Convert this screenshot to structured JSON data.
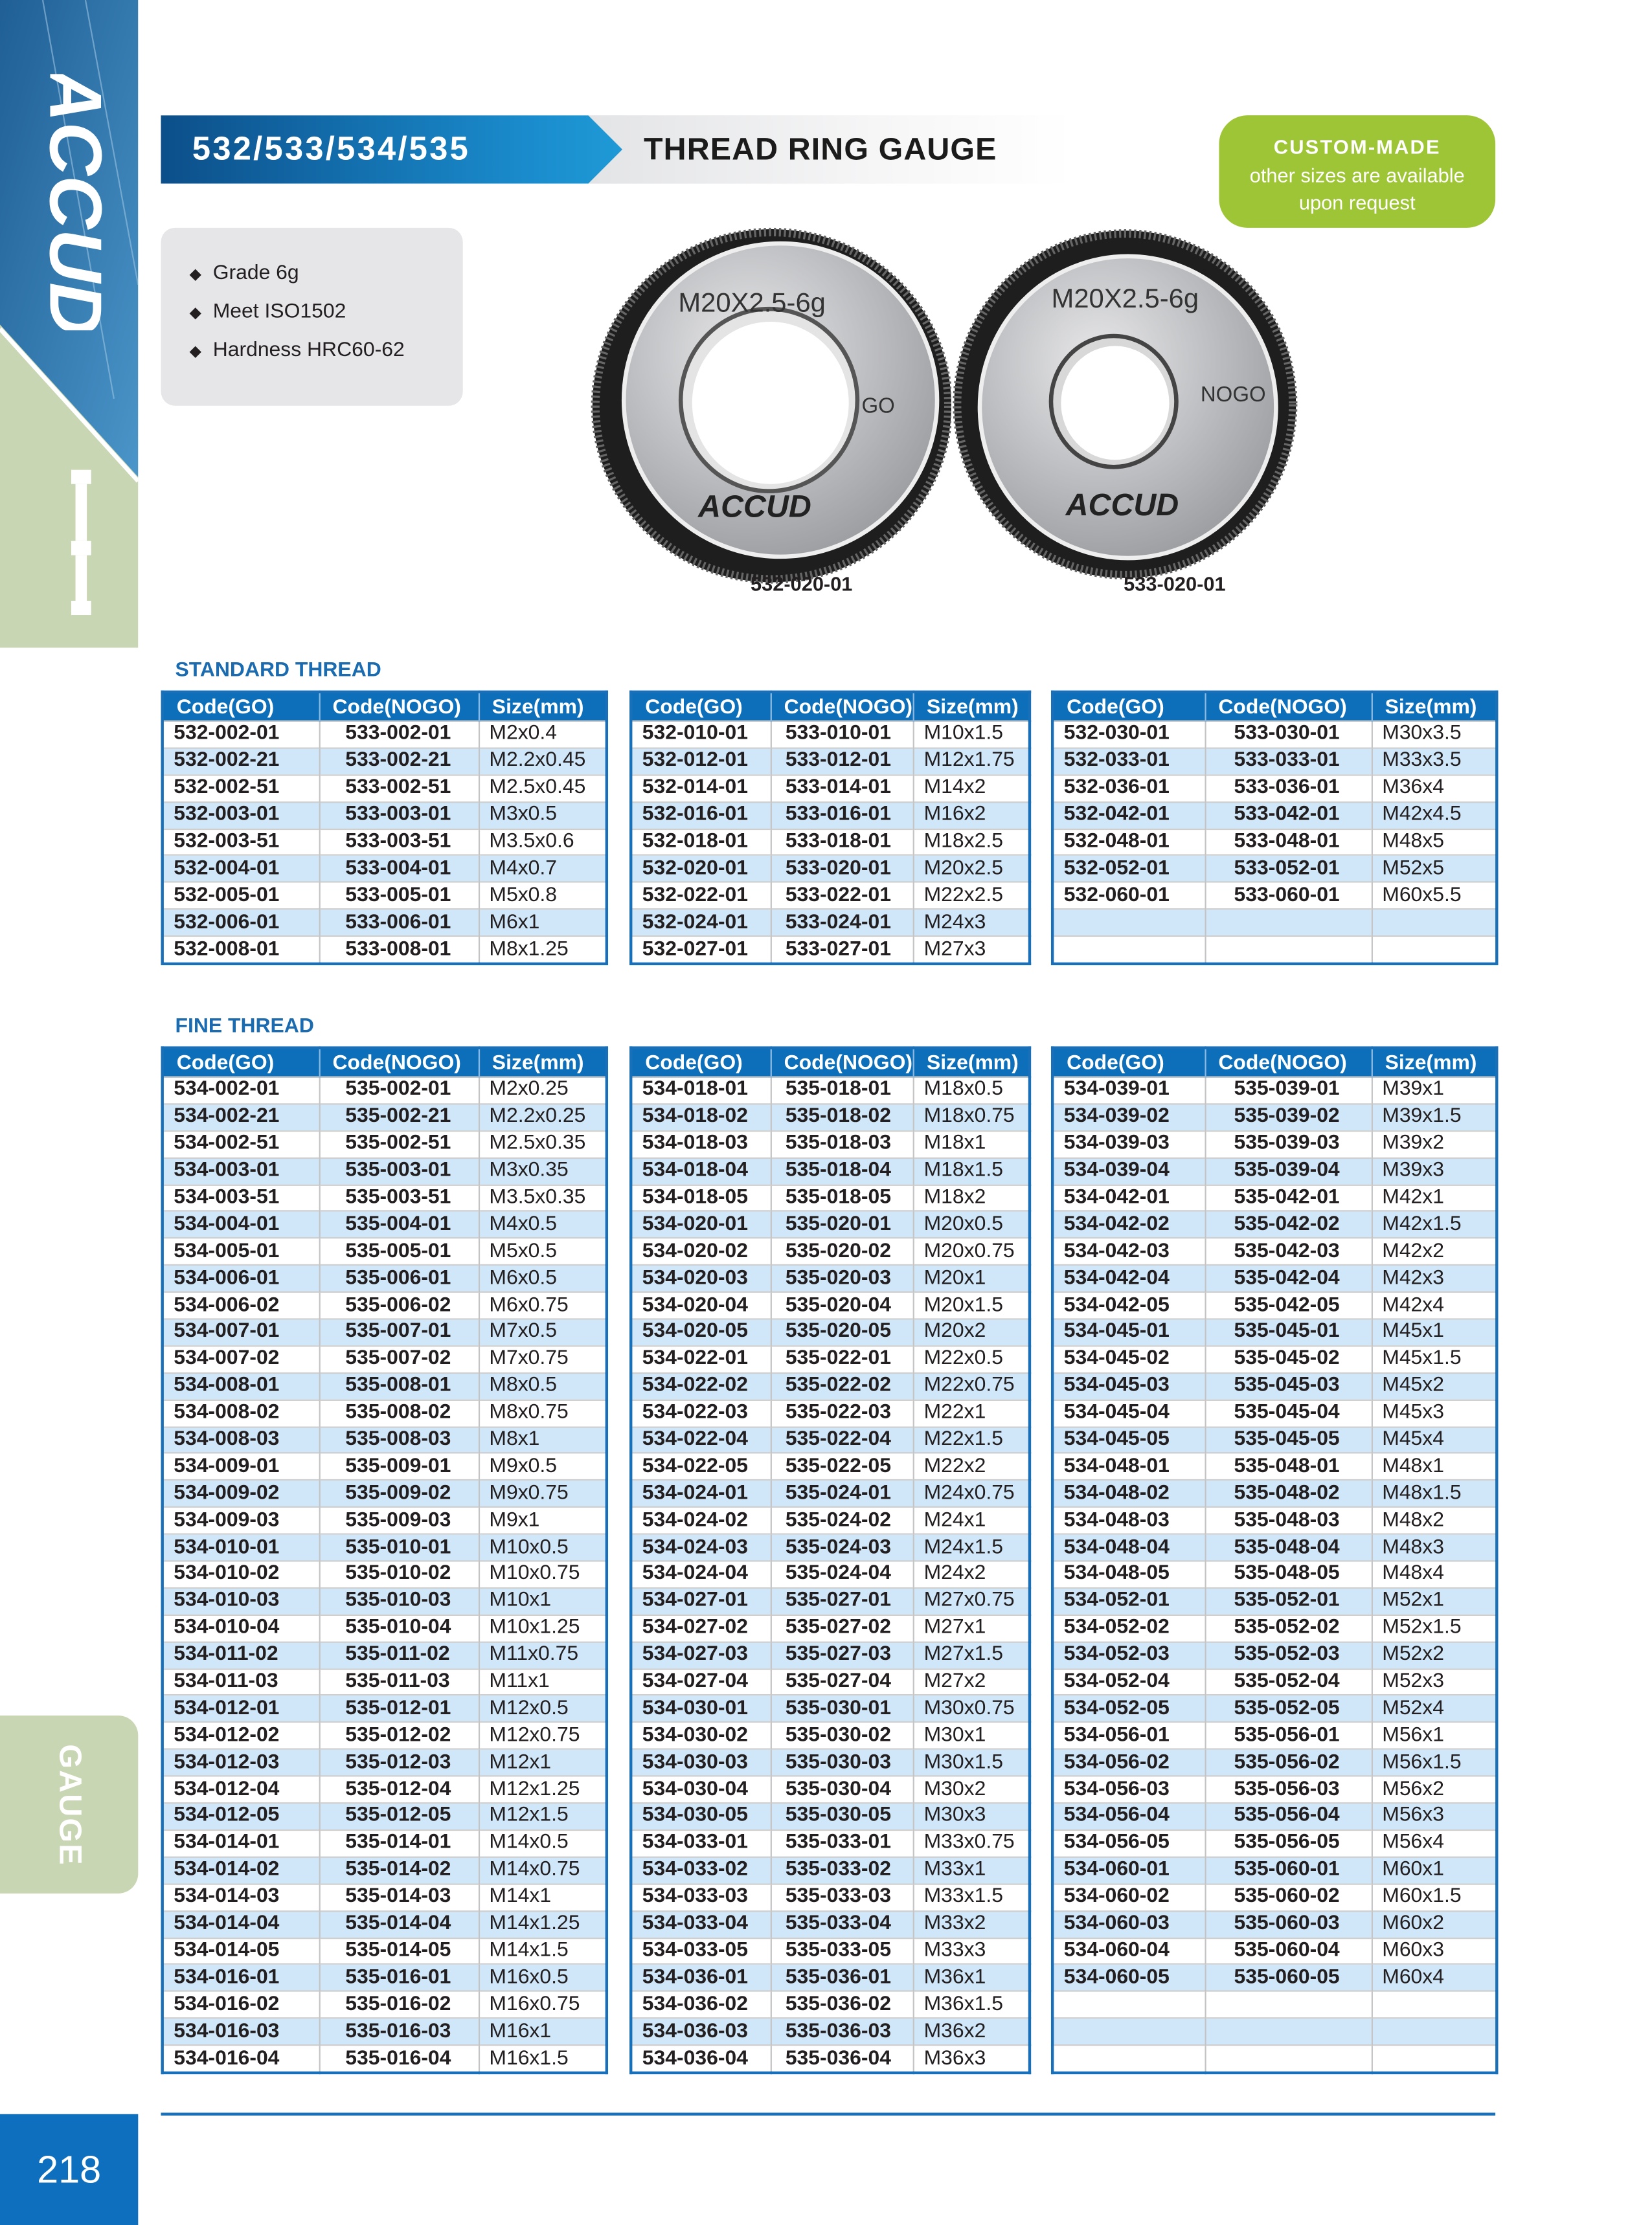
{
  "brand": "ACCUD",
  "side_tab": "GAUGE",
  "page_number": "218",
  "header": {
    "codes": "532/533/534/535",
    "title": "THREAD RING GAUGE"
  },
  "badge": {
    "title": "CUSTOM-MADE",
    "line1": "other sizes are available",
    "line2": "upon request"
  },
  "features": [
    "Grade 6g",
    "Meet ISO1502",
    "Hardness HRC60-62"
  ],
  "products": [
    {
      "marking": "M20X2.5-6g",
      "type": "GO",
      "logo": "ACCUD",
      "code": "532-020-01"
    },
    {
      "marking": "M20X2.5-6g",
      "type": "NOGO",
      "logo": "ACCUD",
      "code": "533-020-01"
    }
  ],
  "colors": {
    "blue": "#0d6fba",
    "row_alt": "#cfe7f9",
    "green": "#9ec535",
    "sage": "#c9d6b3"
  },
  "columns": [
    "Code(GO)",
    "Code(NOGO)",
    "Size(mm)"
  ],
  "standard": {
    "title": "STANDARD THREAD",
    "tables": [
      [
        [
          "532-002-01",
          "533-002-01",
          "M2x0.4"
        ],
        [
          "532-002-21",
          "533-002-21",
          "M2.2x0.45"
        ],
        [
          "532-002-51",
          "533-002-51",
          "M2.5x0.45"
        ],
        [
          "532-003-01",
          "533-003-01",
          "M3x0.5"
        ],
        [
          "532-003-51",
          "533-003-51",
          "M3.5x0.6"
        ],
        [
          "532-004-01",
          "533-004-01",
          "M4x0.7"
        ],
        [
          "532-005-01",
          "533-005-01",
          "M5x0.8"
        ],
        [
          "532-006-01",
          "533-006-01",
          "M6x1"
        ],
        [
          "532-008-01",
          "533-008-01",
          "M8x1.25"
        ]
      ],
      [
        [
          "532-010-01",
          "533-010-01",
          "M10x1.5"
        ],
        [
          "532-012-01",
          "533-012-01",
          "M12x1.75"
        ],
        [
          "532-014-01",
          "533-014-01",
          "M14x2"
        ],
        [
          "532-016-01",
          "533-016-01",
          "M16x2"
        ],
        [
          "532-018-01",
          "533-018-01",
          "M18x2.5"
        ],
        [
          "532-020-01",
          "533-020-01",
          "M20x2.5"
        ],
        [
          "532-022-01",
          "533-022-01",
          "M22x2.5"
        ],
        [
          "532-024-01",
          "533-024-01",
          "M24x3"
        ],
        [
          "532-027-01",
          "533-027-01",
          "M27x3"
        ]
      ],
      [
        [
          "532-030-01",
          "533-030-01",
          "M30x3.5"
        ],
        [
          "532-033-01",
          "533-033-01",
          "M33x3.5"
        ],
        [
          "532-036-01",
          "533-036-01",
          "M36x4"
        ],
        [
          "532-042-01",
          "533-042-01",
          "M42x4.5"
        ],
        [
          "532-048-01",
          "533-048-01",
          "M48x5"
        ],
        [
          "532-052-01",
          "533-052-01",
          "M52x5"
        ],
        [
          "532-060-01",
          "533-060-01",
          "M60x5.5"
        ],
        [
          "",
          "",
          ""
        ],
        [
          "",
          "",
          ""
        ]
      ]
    ]
  },
  "fine": {
    "title": "FINE THREAD",
    "tables": [
      [
        [
          "534-002-01",
          "535-002-01",
          "M2x0.25"
        ],
        [
          "534-002-21",
          "535-002-21",
          "M2.2x0.25"
        ],
        [
          "534-002-51",
          "535-002-51",
          "M2.5x0.35"
        ],
        [
          "534-003-01",
          "535-003-01",
          "M3x0.35"
        ],
        [
          "534-003-51",
          "535-003-51",
          "M3.5x0.35"
        ],
        [
          "534-004-01",
          "535-004-01",
          "M4x0.5"
        ],
        [
          "534-005-01",
          "535-005-01",
          "M5x0.5"
        ],
        [
          "534-006-01",
          "535-006-01",
          "M6x0.5"
        ],
        [
          "534-006-02",
          "535-006-02",
          "M6x0.75"
        ],
        [
          "534-007-01",
          "535-007-01",
          "M7x0.5"
        ],
        [
          "534-007-02",
          "535-007-02",
          "M7x0.75"
        ],
        [
          "534-008-01",
          "535-008-01",
          "M8x0.5"
        ],
        [
          "534-008-02",
          "535-008-02",
          "M8x0.75"
        ],
        [
          "534-008-03",
          "535-008-03",
          "M8x1"
        ],
        [
          "534-009-01",
          "535-009-01",
          "M9x0.5"
        ],
        [
          "534-009-02",
          "535-009-02",
          "M9x0.75"
        ],
        [
          "534-009-03",
          "535-009-03",
          "M9x1"
        ],
        [
          "534-010-01",
          "535-010-01",
          "M10x0.5"
        ],
        [
          "534-010-02",
          "535-010-02",
          "M10x0.75"
        ],
        [
          "534-010-03",
          "535-010-03",
          "M10x1"
        ],
        [
          "534-010-04",
          "535-010-04",
          "M10x1.25"
        ],
        [
          "534-011-02",
          "535-011-02",
          "M11x0.75"
        ],
        [
          "534-011-03",
          "535-011-03",
          "M11x1"
        ],
        [
          "534-012-01",
          "535-012-01",
          "M12x0.5"
        ],
        [
          "534-012-02",
          "535-012-02",
          "M12x0.75"
        ],
        [
          "534-012-03",
          "535-012-03",
          "M12x1"
        ],
        [
          "534-012-04",
          "535-012-04",
          "M12x1.25"
        ],
        [
          "534-012-05",
          "535-012-05",
          "M12x1.5"
        ],
        [
          "534-014-01",
          "535-014-01",
          "M14x0.5"
        ],
        [
          "534-014-02",
          "535-014-02",
          "M14x0.75"
        ],
        [
          "534-014-03",
          "535-014-03",
          "M14x1"
        ],
        [
          "534-014-04",
          "535-014-04",
          "M14x1.25"
        ],
        [
          "534-014-05",
          "535-014-05",
          "M14x1.5"
        ],
        [
          "534-016-01",
          "535-016-01",
          "M16x0.5"
        ],
        [
          "534-016-02",
          "535-016-02",
          "M16x0.75"
        ],
        [
          "534-016-03",
          "535-016-03",
          "M16x1"
        ],
        [
          "534-016-04",
          "535-016-04",
          "M16x1.5"
        ]
      ],
      [
        [
          "534-018-01",
          "535-018-01",
          "M18x0.5"
        ],
        [
          "534-018-02",
          "535-018-02",
          "M18x0.75"
        ],
        [
          "534-018-03",
          "535-018-03",
          "M18x1"
        ],
        [
          "534-018-04",
          "535-018-04",
          "M18x1.5"
        ],
        [
          "534-018-05",
          "535-018-05",
          "M18x2"
        ],
        [
          "534-020-01",
          "535-020-01",
          "M20x0.5"
        ],
        [
          "534-020-02",
          "535-020-02",
          "M20x0.75"
        ],
        [
          "534-020-03",
          "535-020-03",
          "M20x1"
        ],
        [
          "534-020-04",
          "535-020-04",
          "M20x1.5"
        ],
        [
          "534-020-05",
          "535-020-05",
          "M20x2"
        ],
        [
          "534-022-01",
          "535-022-01",
          "M22x0.5"
        ],
        [
          "534-022-02",
          "535-022-02",
          "M22x0.75"
        ],
        [
          "534-022-03",
          "535-022-03",
          "M22x1"
        ],
        [
          "534-022-04",
          "535-022-04",
          "M22x1.5"
        ],
        [
          "534-022-05",
          "535-022-05",
          "M22x2"
        ],
        [
          "534-024-01",
          "535-024-01",
          "M24x0.75"
        ],
        [
          "534-024-02",
          "535-024-02",
          "M24x1"
        ],
        [
          "534-024-03",
          "535-024-03",
          "M24x1.5"
        ],
        [
          "534-024-04",
          "535-024-04",
          "M24x2"
        ],
        [
          "534-027-01",
          "535-027-01",
          "M27x0.75"
        ],
        [
          "534-027-02",
          "535-027-02",
          "M27x1"
        ],
        [
          "534-027-03",
          "535-027-03",
          "M27x1.5"
        ],
        [
          "534-027-04",
          "535-027-04",
          "M27x2"
        ],
        [
          "534-030-01",
          "535-030-01",
          "M30x0.75"
        ],
        [
          "534-030-02",
          "535-030-02",
          "M30x1"
        ],
        [
          "534-030-03",
          "535-030-03",
          "M30x1.5"
        ],
        [
          "534-030-04",
          "535-030-04",
          "M30x2"
        ],
        [
          "534-030-05",
          "535-030-05",
          "M30x3"
        ],
        [
          "534-033-01",
          "535-033-01",
          "M33x0.75"
        ],
        [
          "534-033-02",
          "535-033-02",
          "M33x1"
        ],
        [
          "534-033-03",
          "535-033-03",
          "M33x1.5"
        ],
        [
          "534-033-04",
          "535-033-04",
          "M33x2"
        ],
        [
          "534-033-05",
          "535-033-05",
          "M33x3"
        ],
        [
          "534-036-01",
          "535-036-01",
          "M36x1"
        ],
        [
          "534-036-02",
          "535-036-02",
          "M36x1.5"
        ],
        [
          "534-036-03",
          "535-036-03",
          "M36x2"
        ],
        [
          "534-036-04",
          "535-036-04",
          "M36x3"
        ]
      ],
      [
        [
          "534-039-01",
          "535-039-01",
          "M39x1"
        ],
        [
          "534-039-02",
          "535-039-02",
          "M39x1.5"
        ],
        [
          "534-039-03",
          "535-039-03",
          "M39x2"
        ],
        [
          "534-039-04",
          "535-039-04",
          "M39x3"
        ],
        [
          "534-042-01",
          "535-042-01",
          "M42x1"
        ],
        [
          "534-042-02",
          "535-042-02",
          "M42x1.5"
        ],
        [
          "534-042-03",
          "535-042-03",
          "M42x2"
        ],
        [
          "534-042-04",
          "535-042-04",
          "M42x3"
        ],
        [
          "534-042-05",
          "535-042-05",
          "M42x4"
        ],
        [
          "534-045-01",
          "535-045-01",
          "M45x1"
        ],
        [
          "534-045-02",
          "535-045-02",
          "M45x1.5"
        ],
        [
          "534-045-03",
          "535-045-03",
          "M45x2"
        ],
        [
          "534-045-04",
          "535-045-04",
          "M45x3"
        ],
        [
          "534-045-05",
          "535-045-05",
          "M45x4"
        ],
        [
          "534-048-01",
          "535-048-01",
          "M48x1"
        ],
        [
          "534-048-02",
          "535-048-02",
          "M48x1.5"
        ],
        [
          "534-048-03",
          "535-048-03",
          "M48x2"
        ],
        [
          "534-048-04",
          "535-048-04",
          "M48x3"
        ],
        [
          "534-048-05",
          "535-048-05",
          "M48x4"
        ],
        [
          "534-052-01",
          "535-052-01",
          "M52x1"
        ],
        [
          "534-052-02",
          "535-052-02",
          "M52x1.5"
        ],
        [
          "534-052-03",
          "535-052-03",
          "M52x2"
        ],
        [
          "534-052-04",
          "535-052-04",
          "M52x3"
        ],
        [
          "534-052-05",
          "535-052-05",
          "M52x4"
        ],
        [
          "534-056-01",
          "535-056-01",
          "M56x1"
        ],
        [
          "534-056-02",
          "535-056-02",
          "M56x1.5"
        ],
        [
          "534-056-03",
          "535-056-03",
          "M56x2"
        ],
        [
          "534-056-04",
          "535-056-04",
          "M56x3"
        ],
        [
          "534-056-05",
          "535-056-05",
          "M56x4"
        ],
        [
          "534-060-01",
          "535-060-01",
          "M60x1"
        ],
        [
          "534-060-02",
          "535-060-02",
          "M60x1.5"
        ],
        [
          "534-060-03",
          "535-060-03",
          "M60x2"
        ],
        [
          "534-060-04",
          "535-060-04",
          "M60x3"
        ],
        [
          "534-060-05",
          "535-060-05",
          "M60x4"
        ],
        [
          "",
          "",
          ""
        ],
        [
          "",
          "",
          ""
        ],
        [
          "",
          "",
          ""
        ]
      ]
    ]
  }
}
